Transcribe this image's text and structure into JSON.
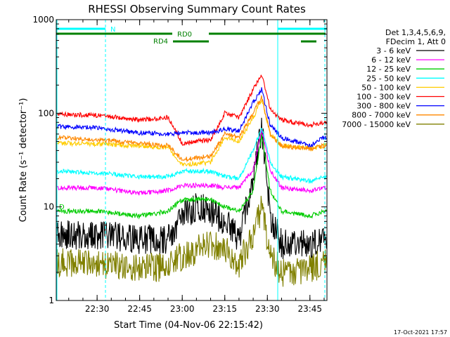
{
  "chart_data": {
    "type": "line",
    "title": "RHESSI Observing Summary Count Rates",
    "xlabel": "Start Time (04-Nov-06 22:15:42)",
    "ylabel": "Count Rate (s⁻¹ detector⁻¹)",
    "yscale": "log",
    "ylim": [
      1,
      1000
    ],
    "xlim_minutes": [
      22.26,
      23.85
    ],
    "xticks": [
      "22:30",
      "22:45",
      "23:00",
      "23:15",
      "23:30",
      "23:45"
    ],
    "yticks": [
      "1",
      "10",
      "100",
      "1000"
    ],
    "legend_header": [
      "Det 1,3,4,5,6,9,",
      "FDecim 1, Att 0"
    ],
    "legend_position": "top-right",
    "series": [
      {
        "name": "3 - 6 keV",
        "color": "#000000",
        "x": [
          "22:16",
          "22:30",
          "22:45",
          "22:55",
          "23:00",
          "23:05",
          "23:10",
          "23:15",
          "23:20",
          "23:25",
          "23:28",
          "23:31",
          "23:35",
          "23:45",
          "23:50"
        ],
        "values": [
          5,
          5,
          4.5,
          4.5,
          8,
          10,
          9,
          7,
          4.5,
          20,
          70,
          8,
          4,
          4,
          4.5
        ]
      },
      {
        "name": "6 - 12 keV",
        "color": "#ff00ff",
        "x": [
          "22:16",
          "22:30",
          "22:45",
          "22:55",
          "23:00",
          "23:10",
          "23:15",
          "23:20",
          "23:25",
          "23:28",
          "23:31",
          "23:35",
          "23:45",
          "23:50"
        ],
        "values": [
          16,
          16,
          14,
          15,
          17,
          17,
          16,
          16,
          25,
          65,
          25,
          16,
          15,
          16
        ]
      },
      {
        "name": "12 - 25 keV",
        "color": "#00cc00",
        "x": [
          "22:16",
          "22:30",
          "22:45",
          "22:55",
          "23:00",
          "23:10",
          "23:15",
          "23:20",
          "23:25",
          "23:28",
          "23:31",
          "23:35",
          "23:45",
          "23:50"
        ],
        "values": [
          9,
          9,
          8,
          9,
          12,
          12,
          10,
          9,
          15,
          60,
          15,
          9,
          8,
          9
        ]
      },
      {
        "name": "25 - 50 keV",
        "color": "#00ffff",
        "x": [
          "22:16",
          "22:30",
          "22:45",
          "22:55",
          "23:00",
          "23:10",
          "23:15",
          "23:20",
          "23:25",
          "23:28",
          "23:31",
          "23:35",
          "23:45",
          "23:50"
        ],
        "values": [
          24,
          23,
          21,
          21,
          24,
          24,
          21,
          20,
          40,
          70,
          30,
          21,
          19,
          21
        ]
      },
      {
        "name": "50 - 100 keV",
        "color": "#ffcc00",
        "x": [
          "22:16",
          "22:30",
          "22:45",
          "22:55",
          "23:00",
          "23:10",
          "23:15",
          "23:20",
          "23:25",
          "23:28",
          "23:31",
          "23:35",
          "23:45",
          "23:50"
        ],
        "values": [
          48,
          47,
          45,
          43,
          28,
          30,
          55,
          50,
          90,
          140,
          60,
          45,
          42,
          45
        ]
      },
      {
        "name": "100 - 300 keV",
        "color": "#ff0000",
        "x": [
          "22:16",
          "22:30",
          "22:45",
          "22:55",
          "23:00",
          "23:10",
          "23:15",
          "23:20",
          "23:25",
          "23:28",
          "23:31",
          "23:35",
          "23:45",
          "23:50"
        ],
        "values": [
          98,
          95,
          85,
          90,
          48,
          52,
          100,
          90,
          180,
          260,
          110,
          85,
          75,
          80
        ]
      },
      {
        "name": "300 - 800 keV",
        "color": "#0000ff",
        "x": [
          "22:16",
          "22:30",
          "22:45",
          "22:55",
          "23:00",
          "23:10",
          "23:15",
          "23:20",
          "23:25",
          "23:28",
          "23:31",
          "23:35",
          "23:45",
          "23:50"
        ],
        "values": [
          72,
          70,
          62,
          60,
          62,
          62,
          68,
          65,
          130,
          180,
          75,
          55,
          45,
          55
        ]
      },
      {
        "name": "800 - 7000 keV",
        "color": "#ff8800",
        "x": [
          "22:16",
          "22:30",
          "22:45",
          "22:55",
          "23:00",
          "23:10",
          "23:15",
          "23:20",
          "23:25",
          "23:28",
          "23:31",
          "23:35",
          "23:45",
          "23:50"
        ],
        "values": [
          55,
          52,
          48,
          45,
          32,
          35,
          60,
          55,
          100,
          150,
          60,
          45,
          42,
          45
        ]
      },
      {
        "name": "7000 - 15000 keV",
        "color": "#808000",
        "x": [
          "22:16",
          "22:30",
          "22:45",
          "22:55",
          "23:00",
          "23:10",
          "23:15",
          "23:20",
          "23:25",
          "23:28",
          "23:31",
          "23:35",
          "23:45",
          "23:50"
        ],
        "values": [
          2.5,
          2.5,
          2.2,
          2.3,
          3,
          4,
          3.5,
          2.5,
          5,
          10,
          3,
          2,
          2.2,
          2.5
        ]
      }
    ],
    "annotations": [
      {
        "text": "N",
        "color": "#00ffff",
        "x": "22:31"
      },
      {
        "text": "RD0",
        "color": "#008000",
        "x": "23:06"
      },
      {
        "text": "RD4",
        "color": "#008000",
        "x": "22:59"
      },
      {
        "text": "D",
        "color": "#00cc00",
        "x": "22:17"
      }
    ]
  },
  "footer": {
    "date": "17-Oct-2021 17:57"
  }
}
